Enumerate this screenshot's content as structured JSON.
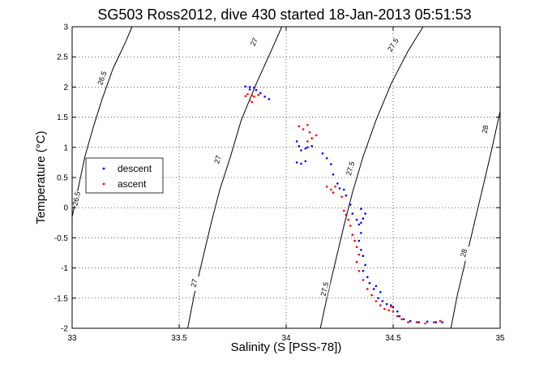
{
  "chart_data": {
    "type": "scatter",
    "title": "SG503 Ross2012, dive 430 started 18-Jan-2013 05:51:53",
    "xlabel": "Salinity (S [PSS-78])",
    "ylabel": "Temperature (°C)",
    "xlim": [
      33,
      35
    ],
    "ylim": [
      -2,
      3
    ],
    "xticks": [
      33,
      33.5,
      34,
      34.5,
      35
    ],
    "yticks": [
      -2,
      -1.5,
      -1,
      -0.5,
      0,
      0.5,
      1,
      1.5,
      2,
      2.5,
      3
    ],
    "grid": true,
    "legend_position": "left",
    "series": [
      {
        "name": "descent",
        "color": "#0000ff",
        "points": [
          [
            33.81,
            2.01
          ],
          [
            33.83,
            2.0
          ],
          [
            33.85,
            1.99
          ],
          [
            33.86,
            1.95
          ],
          [
            33.88,
            1.9
          ],
          [
            33.9,
            1.84
          ],
          [
            33.92,
            1.8
          ],
          [
            33.83,
            1.96
          ],
          [
            34.05,
            1.1
          ],
          [
            34.06,
            1.02
          ],
          [
            34.07,
            0.95
          ],
          [
            34.05,
            0.75
          ],
          [
            34.07,
            0.73
          ],
          [
            34.09,
            0.77
          ],
          [
            34.1,
            1.0
          ],
          [
            34.12,
            1.02
          ],
          [
            34.09,
            0.98
          ],
          [
            34.17,
            0.9
          ],
          [
            34.19,
            0.82
          ],
          [
            34.21,
            0.72
          ],
          [
            34.22,
            0.55
          ],
          [
            34.24,
            0.4
          ],
          [
            34.25,
            0.32
          ],
          [
            34.27,
            0.3
          ],
          [
            34.28,
            0.2
          ],
          [
            34.3,
            0.05
          ],
          [
            34.31,
            -0.1
          ],
          [
            34.33,
            -0.2
          ],
          [
            34.35,
            -0.25
          ],
          [
            34.36,
            -0.18
          ],
          [
            34.37,
            -0.1
          ],
          [
            34.35,
            -0.02
          ],
          [
            34.34,
            -0.28
          ],
          [
            34.35,
            -0.42
          ],
          [
            34.34,
            -0.55
          ],
          [
            34.35,
            -0.7
          ],
          [
            34.36,
            -0.8
          ],
          [
            34.37,
            -0.95
          ],
          [
            34.36,
            -1.05
          ],
          [
            34.38,
            -1.15
          ],
          [
            34.39,
            -1.25
          ],
          [
            34.41,
            -1.35
          ],
          [
            34.42,
            -1.3
          ],
          [
            34.44,
            -1.4
          ],
          [
            34.43,
            -1.5
          ],
          [
            34.45,
            -1.55
          ],
          [
            34.47,
            -1.6
          ],
          [
            34.49,
            -1.62
          ],
          [
            34.5,
            -1.65
          ],
          [
            34.52,
            -1.72
          ],
          [
            34.53,
            -1.8
          ],
          [
            34.55,
            -1.85
          ],
          [
            34.58,
            -1.88
          ],
          [
            34.62,
            -1.9
          ],
          [
            34.66,
            -1.89
          ],
          [
            34.7,
            -1.9
          ],
          [
            34.73,
            -1.9
          ]
        ]
      },
      {
        "name": "ascent",
        "color": "#ff0000",
        "points": [
          [
            33.81,
            1.85
          ],
          [
            33.82,
            1.88
          ],
          [
            33.84,
            1.86
          ],
          [
            33.85,
            1.84
          ],
          [
            33.83,
            1.78
          ],
          [
            33.84,
            1.75
          ],
          [
            33.87,
            1.87
          ],
          [
            34.06,
            1.35
          ],
          [
            34.08,
            1.3
          ],
          [
            34.1,
            1.37
          ],
          [
            34.11,
            1.25
          ],
          [
            34.12,
            1.15
          ],
          [
            34.1,
            1.1
          ],
          [
            34.14,
            1.2
          ],
          [
            34.19,
            0.35
          ],
          [
            34.21,
            0.3
          ],
          [
            34.22,
            0.25
          ],
          [
            34.23,
            0.35
          ],
          [
            34.26,
            0.18
          ],
          [
            34.27,
            -0.05
          ],
          [
            34.28,
            -0.12
          ],
          [
            34.29,
            -0.2
          ],
          [
            34.3,
            -0.3
          ],
          [
            34.31,
            -0.45
          ],
          [
            34.32,
            -0.55
          ],
          [
            34.33,
            -0.65
          ],
          [
            34.34,
            -0.78
          ],
          [
            34.33,
            -0.9
          ],
          [
            34.34,
            -1.05
          ],
          [
            34.36,
            -1.2
          ],
          [
            34.38,
            -1.35
          ],
          [
            34.4,
            -1.45
          ],
          [
            34.42,
            -1.55
          ],
          [
            34.44,
            -1.62
          ],
          [
            34.46,
            -1.68
          ],
          [
            34.48,
            -1.7
          ],
          [
            34.5,
            -1.72
          ],
          [
            34.49,
            -1.64
          ],
          [
            34.52,
            -1.8
          ],
          [
            34.54,
            -1.85
          ],
          [
            34.57,
            -1.9
          ],
          [
            34.61,
            -1.9
          ],
          [
            34.65,
            -1.92
          ],
          [
            34.69,
            -1.9
          ],
          [
            34.72,
            -1.88
          ]
        ]
      }
    ],
    "contours": [
      {
        "label": "26.5",
        "points": [
          [
            33.0,
            -0.15
          ],
          [
            33.03,
            0.35
          ],
          [
            33.06,
            0.85
          ],
          [
            33.1,
            1.35
          ],
          [
            33.14,
            1.8
          ],
          [
            33.19,
            2.3
          ],
          [
            33.25,
            2.75
          ],
          [
            33.28,
            3.0
          ]
        ],
        "label_positions": [
          [
            33.14,
            2.15
          ],
          [
            33.02,
            0.15
          ]
        ]
      },
      {
        "label": "27",
        "points": [
          [
            33.54,
            -2.0
          ],
          [
            33.57,
            -1.45
          ],
          [
            33.61,
            -0.85
          ],
          [
            33.65,
            -0.25
          ],
          [
            33.69,
            0.3
          ],
          [
            33.74,
            0.85
          ],
          [
            33.79,
            1.45
          ],
          [
            33.86,
            2.05
          ],
          [
            33.93,
            2.6
          ],
          [
            33.98,
            3.0
          ]
        ],
        "label_positions": [
          [
            33.85,
            2.75
          ],
          [
            33.68,
            0.8
          ],
          [
            33.57,
            -1.25
          ]
        ]
      },
      {
        "label": "27.5",
        "points": [
          [
            34.16,
            -2.0
          ],
          [
            34.19,
            -1.5
          ],
          [
            34.23,
            -0.9
          ],
          [
            34.27,
            -0.3
          ],
          [
            34.31,
            0.25
          ],
          [
            34.36,
            0.85
          ],
          [
            34.42,
            1.45
          ],
          [
            34.49,
            2.05
          ],
          [
            34.57,
            2.6
          ],
          [
            34.64,
            3.0
          ]
        ],
        "label_positions": [
          [
            34.5,
            2.7
          ],
          [
            34.3,
            0.65
          ],
          [
            34.18,
            -1.35
          ]
        ]
      },
      {
        "label": "28",
        "points": [
          [
            34.77,
            -2.0
          ],
          [
            34.8,
            -1.45
          ],
          [
            34.84,
            -0.85
          ],
          [
            34.88,
            -0.25
          ],
          [
            34.92,
            0.35
          ],
          [
            34.96,
            0.95
          ],
          [
            35.0,
            1.6
          ]
        ],
        "label_positions": [
          [
            34.93,
            1.3
          ],
          [
            34.83,
            -0.75
          ]
        ]
      }
    ]
  }
}
